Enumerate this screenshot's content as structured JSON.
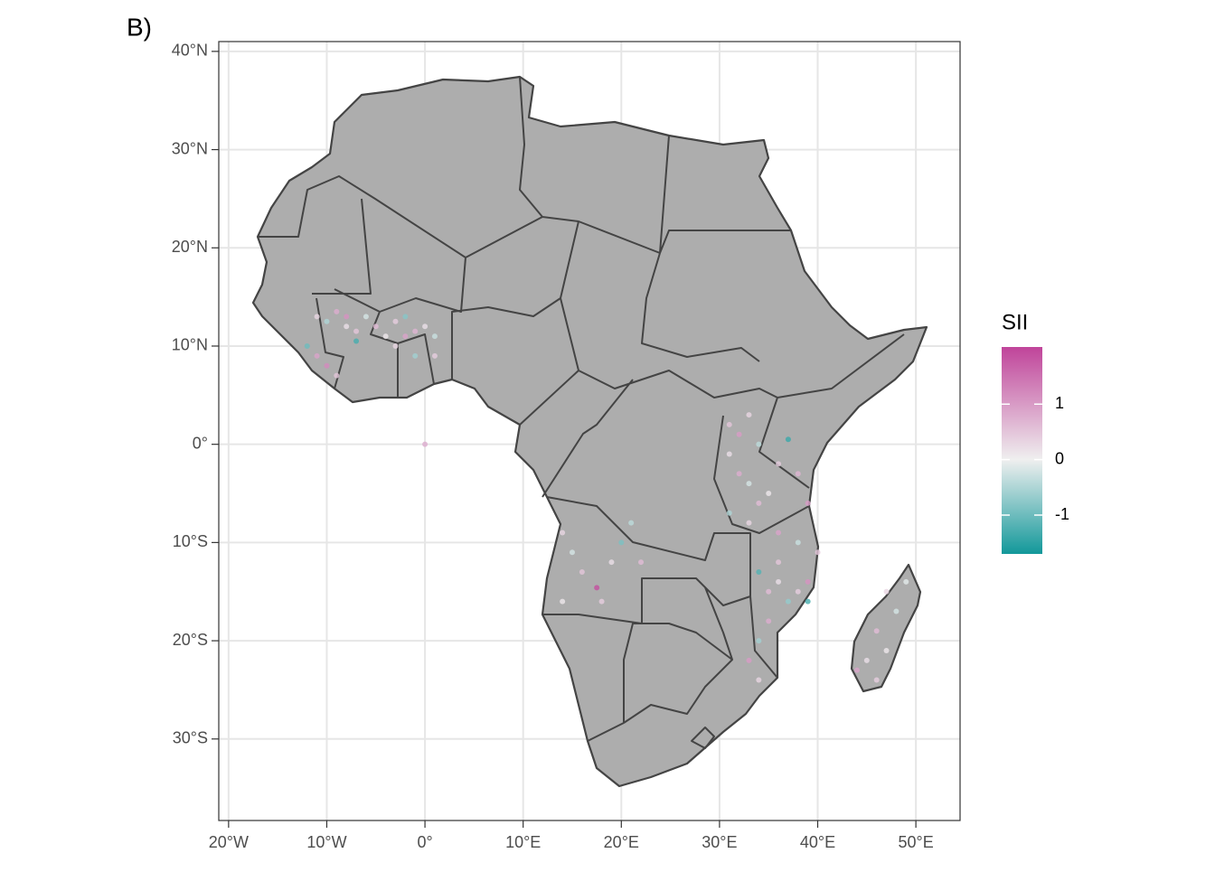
{
  "chart_data": {
    "type": "scatter",
    "panel_label": "B)",
    "xlim": [
      -21,
      54.5
    ],
    "ylim": [
      -38.3,
      41
    ],
    "xticks": [
      {
        "value": -20,
        "label": "20°W"
      },
      {
        "value": -10,
        "label": "10°W"
      },
      {
        "value": 0,
        "label": "0°"
      },
      {
        "value": 10,
        "label": "10°E"
      },
      {
        "value": 20,
        "label": "20°E"
      },
      {
        "value": 30,
        "label": "30°E"
      },
      {
        "value": 40,
        "label": "40°E"
      },
      {
        "value": 50,
        "label": "50°E"
      }
    ],
    "yticks": [
      {
        "value": 40,
        "label": "40°N"
      },
      {
        "value": 30,
        "label": "30°N"
      },
      {
        "value": 20,
        "label": "20°N"
      },
      {
        "value": 10,
        "label": "10°N"
      },
      {
        "value": 0,
        "label": "0°"
      },
      {
        "value": -10,
        "label": "10°S"
      },
      {
        "value": -20,
        "label": "20°S"
      },
      {
        "value": -30,
        "label": "30°S"
      }
    ],
    "grid": true,
    "legend": {
      "title": "SII",
      "lim": [
        -1.7,
        2.03
      ],
      "ticks": [
        1,
        0,
        -1
      ],
      "low_color": "#12989a",
      "mid_color": "#efefef",
      "high_color": "#c0449a"
    },
    "x": [
      -11,
      -10,
      -9,
      -8,
      -7,
      -6,
      -5,
      -4,
      -3,
      -2,
      -1,
      0,
      1,
      -12,
      -11,
      -10,
      -9,
      -7,
      -3,
      -1,
      1,
      -8,
      -2,
      31,
      32,
      33,
      34,
      31,
      32,
      33,
      34,
      35,
      36,
      37,
      38,
      39,
      31,
      33,
      36,
      38,
      40,
      34,
      35,
      36,
      37,
      38,
      39,
      35,
      34,
      33,
      34,
      39,
      36,
      14,
      15,
      16,
      17.5,
      19,
      20,
      14,
      18,
      22,
      21,
      47,
      48,
      46,
      45,
      44,
      47,
      46,
      49,
      0
    ],
    "y": [
      13,
      12.5,
      13.5,
      12,
      11.5,
      13,
      12,
      11,
      12.5,
      13,
      11.5,
      12,
      11,
      10,
      9,
      8,
      7,
      10.5,
      10,
      9,
      9,
      13,
      11,
      2,
      1,
      3,
      0,
      -1,
      -3,
      -4,
      -6,
      -5,
      -2,
      0.5,
      -3,
      -6,
      -7,
      -8,
      -9,
      -10,
      -11,
      -13,
      -15,
      -14,
      -16,
      -15,
      -14,
      -18,
      -20,
      -22,
      -24,
      -16,
      -12,
      -9,
      -11,
      -13,
      -14.6,
      -12,
      -10,
      -16,
      -16,
      -12,
      -8,
      -15,
      -17,
      -19,
      -22,
      -23,
      -21,
      -24,
      -14,
      0
    ],
    "values": [
      0.3,
      -0.5,
      0.8,
      0.2,
      0.5,
      -0.2,
      0.6,
      0.1,
      0.4,
      -0.8,
      0.7,
      0.2,
      -0.3,
      -1,
      0.9,
      1.2,
      0.5,
      -1.3,
      0.3,
      -0.6,
      0.4,
      1.1,
      0.9,
      0.5,
      1,
      0.3,
      -0.4,
      0.2,
      0.8,
      -0.2,
      0.6,
      0.1,
      0.4,
      -1.4,
      0.7,
      1,
      -0.5,
      0.3,
      0.9,
      -0.3,
      0.5,
      -1.2,
      0.6,
      0.2,
      -0.7,
      0.4,
      1.1,
      0.8,
      -0.6,
      1,
      0.3,
      -1.3,
      0.5,
      0.3,
      -0.2,
      0.5,
      1.9,
      0.2,
      -0.9,
      0.1,
      0.4,
      0.6,
      -0.4,
      0.3,
      -0.2,
      0.6,
      0.2,
      0.9,
      0.1,
      0.4,
      -0.1,
      0.8
    ]
  }
}
